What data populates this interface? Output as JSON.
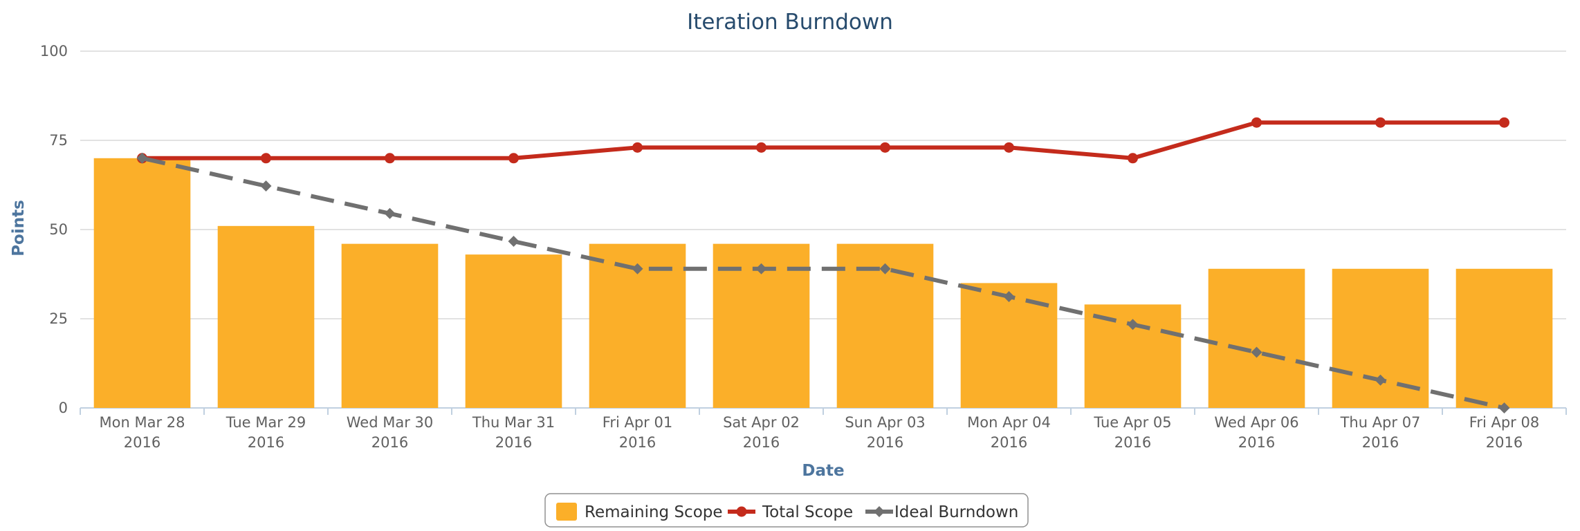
{
  "chart_data": {
    "type": "bar",
    "title": "Iteration Burndown",
    "xlabel": "Date",
    "ylabel": "Points",
    "ylim": [
      0,
      100
    ],
    "yticks": [
      0,
      25,
      50,
      75,
      100
    ],
    "categories": [
      [
        "Mon Mar 28",
        "2016"
      ],
      [
        "Tue Mar 29",
        "2016"
      ],
      [
        "Wed Mar 30",
        "2016"
      ],
      [
        "Thu Mar 31",
        "2016"
      ],
      [
        "Fri Apr 01",
        "2016"
      ],
      [
        "Sat Apr 02",
        "2016"
      ],
      [
        "Sun Apr 03",
        "2016"
      ],
      [
        "Mon Apr 04",
        "2016"
      ],
      [
        "Tue Apr 05",
        "2016"
      ],
      [
        "Wed Apr 06",
        "2016"
      ],
      [
        "Thu Apr 07",
        "2016"
      ],
      [
        "Fri Apr 08",
        "2016"
      ]
    ],
    "grid": true,
    "legend_position": "bottom-center",
    "series": [
      {
        "name": "Remaining Scope",
        "type": "bar",
        "color": "#fbaf29",
        "values": [
          70,
          51,
          46,
          43,
          46,
          46,
          46,
          35,
          29,
          39,
          39,
          39
        ]
      },
      {
        "name": "Total Scope",
        "type": "line",
        "color": "#c42b1c",
        "dash": "solid",
        "marker": "circle",
        "values": [
          70,
          70,
          70,
          70,
          73,
          73,
          73,
          73,
          70,
          80,
          80,
          80
        ]
      },
      {
        "name": "Ideal Burndown",
        "type": "line",
        "color": "#707070",
        "dash": "dashed",
        "marker": "diamond",
        "values": [
          70,
          62.2,
          54.5,
          46.7,
          39,
          39,
          39,
          31.2,
          23.4,
          15.6,
          7.8,
          0
        ]
      }
    ]
  }
}
